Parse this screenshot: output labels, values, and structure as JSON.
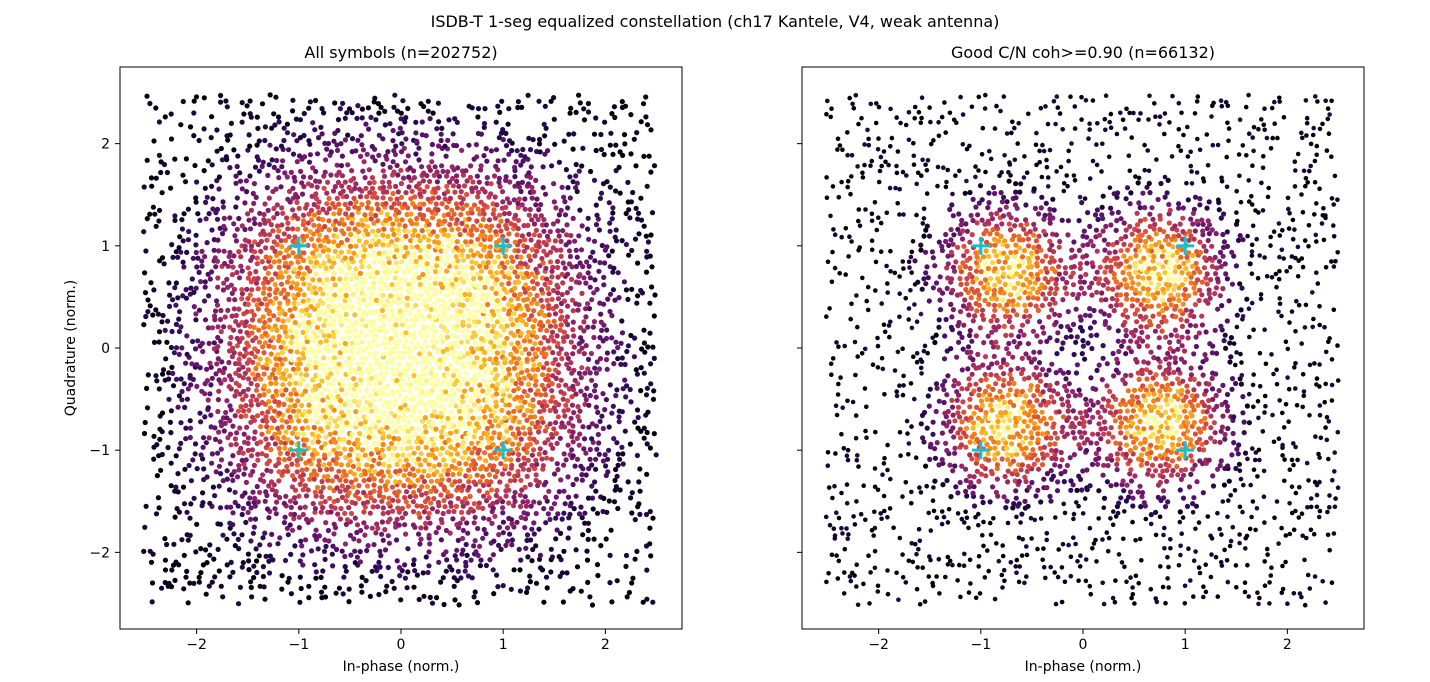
{
  "figure": {
    "suptitle": "ISDB-T 1-seg equalized constellation (ch17 Kantele, V4, weak antenna)"
  },
  "chart_data": [
    {
      "type": "heatmap",
      "subtype": "hexbin-scatter",
      "title": "All symbols  (n=202752)",
      "xlabel": "In-phase (norm.)",
      "ylabel": "Quadrature (norm.)",
      "xlim": [
        -2.75,
        2.75
      ],
      "ylim": [
        -2.75,
        2.75
      ],
      "xticks": [
        -2,
        -1,
        0,
        1,
        2
      ],
      "yticks": [
        -2,
        -1,
        0,
        1,
        2
      ],
      "tick_labels": [
        "−2",
        "−1",
        "0",
        "1",
        "2"
      ],
      "data_extent": [
        -2.5,
        2.5
      ],
      "n": 202752,
      "colormap": "inferno",
      "density_model": "four QPSK clusters, sigma about 0.75, heavily overlapping into a single bright blob",
      "cluster_centers": [
        [
          -0.7,
          0.7
        ],
        [
          0.7,
          0.7
        ],
        [
          -0.7,
          -0.7
        ],
        [
          0.7,
          -0.7
        ]
      ],
      "reference_points": [
        [
          -1,
          1
        ],
        [
          1,
          1
        ],
        [
          -1,
          -1
        ],
        [
          1,
          -1
        ]
      ],
      "reference_marker": "+",
      "reference_color": "#17becf",
      "grid": false
    },
    {
      "type": "heatmap",
      "subtype": "hexbin-scatter",
      "title": "Good C/N  coh>=0.90  (n=66132)",
      "xlabel": "In-phase (norm.)",
      "ylabel": "",
      "xlim": [
        -2.75,
        2.75
      ],
      "ylim": [
        -2.75,
        2.75
      ],
      "xticks": [
        -2,
        -1,
        0,
        1,
        2
      ],
      "yticks": [
        -2,
        -1,
        0,
        1,
        2
      ],
      "tick_labels": [
        "−2",
        "−1",
        "0",
        "1",
        "2"
      ],
      "ytick_labels_shown": false,
      "data_extent": [
        -2.5,
        2.5
      ],
      "n": 66132,
      "colormap": "inferno",
      "density_model": "four distinct QPSK clusters, sigma about 0.45, visible gaps between clusters",
      "cluster_centers": [
        [
          -0.75,
          0.75
        ],
        [
          0.75,
          0.75
        ],
        [
          -0.75,
          -0.75
        ],
        [
          0.75,
          -0.75
        ]
      ],
      "reference_points": [
        [
          -1,
          1
        ],
        [
          1,
          1
        ],
        [
          -1,
          -1
        ],
        [
          1,
          -1
        ]
      ],
      "reference_marker": "+",
      "reference_color": "#17becf",
      "grid": false
    }
  ]
}
